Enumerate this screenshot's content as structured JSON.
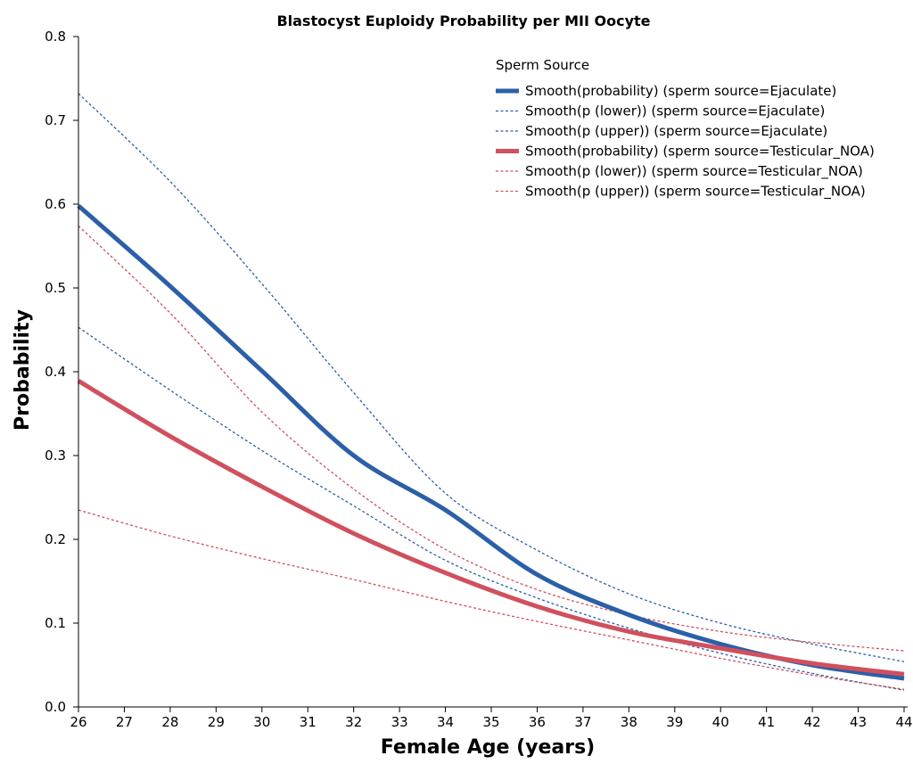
{
  "chart_data": {
    "type": "line",
    "title": "Blastocyst Euploidy Probability per MII Oocyte",
    "xlabel": "Female Age (years)",
    "ylabel": "Probability",
    "xlim": [
      26,
      44
    ],
    "ylim": [
      0.0,
      0.8
    ],
    "x_ticks": [
      26,
      27,
      28,
      29,
      30,
      31,
      32,
      33,
      34,
      35,
      36,
      37,
      38,
      39,
      40,
      41,
      42,
      43,
      44
    ],
    "y_ticks": [
      0.0,
      0.1,
      0.2,
      0.3,
      0.4,
      0.5,
      0.6,
      0.7,
      0.8
    ],
    "y_tick_labels": [
      "0.0",
      "0.1",
      "0.2",
      "0.3",
      "0.4",
      "0.5",
      "0.6",
      "0.7",
      "0.8"
    ],
    "grid": false,
    "legend_title": "Sperm Source",
    "legend_position": "top-right",
    "x": [
      26,
      28,
      30,
      32,
      34,
      36,
      38,
      40,
      42,
      44
    ],
    "series": [
      {
        "name": "Smooth(probability) (sperm source=Ejaculate)",
        "color": "#2c5fa8",
        "style": "solid",
        "values": [
          0.598,
          0.502,
          0.401,
          0.3,
          0.235,
          0.158,
          0.11,
          0.075,
          0.05,
          0.034
        ]
      },
      {
        "name": "Smooth(p (lower)) (sperm source=Ejaculate)",
        "color": "#2c5fa8",
        "style": "dotted",
        "values": [
          0.453,
          0.378,
          0.306,
          0.24,
          0.175,
          0.13,
          0.094,
          0.064,
          0.04,
          0.02
        ]
      },
      {
        "name": "Smooth(p (upper)) (sperm source=Ejaculate)",
        "color": "#2c5fa8",
        "style": "dotted",
        "values": [
          0.732,
          0.627,
          0.505,
          0.375,
          0.255,
          0.187,
          0.135,
          0.1,
          0.075,
          0.054
        ]
      },
      {
        "name": "Smooth(probability) (sperm source=Testicular_NOA)",
        "color": "#d0505e",
        "style": "solid",
        "values": [
          0.389,
          0.323,
          0.263,
          0.207,
          0.16,
          0.12,
          0.09,
          0.07,
          0.052,
          0.039
        ]
      },
      {
        "name": "Smooth(p (lower)) (sperm source=Testicular_NOA)",
        "color": "#d0505e",
        "style": "dotted",
        "values": [
          0.235,
          0.204,
          0.177,
          0.152,
          0.126,
          0.102,
          0.08,
          0.058,
          0.038,
          0.021
        ]
      },
      {
        "name": "Smooth(p (upper)) (sperm source=Testicular_NOA)",
        "color": "#d0505e",
        "style": "dotted",
        "values": [
          0.574,
          0.47,
          0.352,
          0.26,
          0.188,
          0.14,
          0.11,
          0.09,
          0.077,
          0.067
        ]
      }
    ]
  }
}
